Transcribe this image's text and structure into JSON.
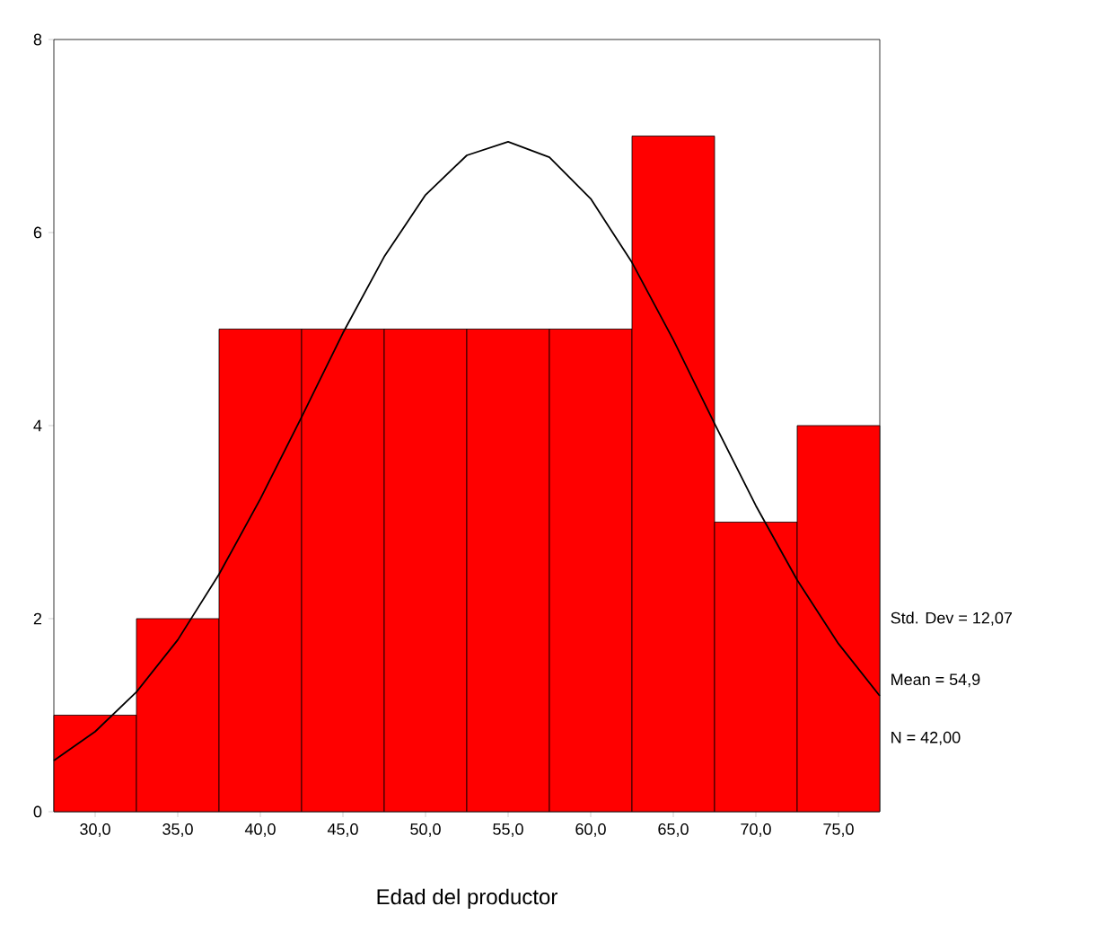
{
  "chart_data": {
    "type": "histogram",
    "xlabel": "Edad del productor",
    "bins": [
      27.5,
      32.5,
      37.5,
      42.5,
      47.5,
      52.5,
      57.5,
      62.5,
      67.5,
      72.5,
      77.5
    ],
    "values": [
      1,
      2,
      5,
      5,
      5,
      5,
      5,
      7,
      3,
      4
    ],
    "color": "#ff0000",
    "series": [
      {
        "type": "line",
        "color": "#000000",
        "x": [
          27.5,
          30,
          32.5,
          35,
          37.5,
          40,
          42.5,
          45,
          47.5,
          50,
          52.5,
          55,
          57.5,
          60,
          62.5,
          65,
          67.5,
          70,
          72.5,
          75,
          77.5
        ],
        "values": [
          0.53,
          0.83,
          1.24,
          1.78,
          2.46,
          3.24,
          4.09,
          4.96,
          5.75,
          6.39,
          6.8,
          6.94,
          6.78,
          6.35,
          5.69,
          4.89,
          4.02,
          3.17,
          2.4,
          1.74,
          1.2
        ]
      }
    ],
    "xlim": [
      27.5,
      77.5
    ],
    "ylim": [
      0,
      8
    ],
    "xticks": [
      {
        "value": 30,
        "label": "30,0"
      },
      {
        "value": 35,
        "label": "35,0"
      },
      {
        "value": 40,
        "label": "40,0"
      },
      {
        "value": 45,
        "label": "45,0"
      },
      {
        "value": 50,
        "label": "50,0"
      },
      {
        "value": 55,
        "label": "55,0"
      },
      {
        "value": 60,
        "label": "60,0"
      },
      {
        "value": 65,
        "label": "65,0"
      },
      {
        "value": 70,
        "label": "70,0"
      },
      {
        "value": 75,
        "label": "75,0"
      }
    ],
    "yticks": [
      0,
      2,
      4,
      6,
      8
    ],
    "annotations": [
      "Std. Dev = 12,07",
      "Mean = 54,9",
      "N = 42,00"
    ]
  }
}
